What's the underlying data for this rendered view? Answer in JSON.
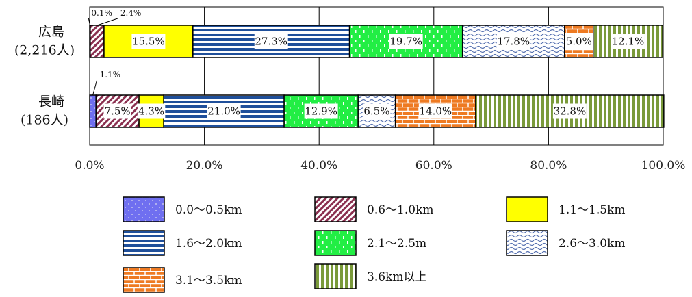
{
  "chart_data": {
    "type": "bar",
    "orientation": "horizontal",
    "stacked": true,
    "categories": [
      {
        "name": "広島",
        "count": "(2,216人)"
      },
      {
        "name": "長崎",
        "count": "(186人)"
      }
    ],
    "series": [
      {
        "name": "0.0～0.5km",
        "values": [
          0.1,
          1.1
        ],
        "labels": [
          "0.1%",
          "1.1%"
        ],
        "color": "#6f6ff0"
      },
      {
        "name": "0.6～1.0km",
        "values": [
          2.4,
          7.5
        ],
        "labels": [
          "2.4%",
          "7.5%"
        ],
        "color": "#8b3050"
      },
      {
        "name": "1.1～1.5km",
        "values": [
          15.5,
          4.3
        ],
        "labels": [
          "15.5%",
          "4.3%"
        ],
        "color": "#ffff00"
      },
      {
        "name": "1.6～2.0km",
        "values": [
          27.3,
          21.0
        ],
        "labels": [
          "27.3%",
          "21.0%"
        ],
        "color": "#1f4f9a"
      },
      {
        "name": "2.1～2.5m",
        "values": [
          19.7,
          12.9
        ],
        "labels": [
          "19.7%",
          "12.9%"
        ],
        "color": "#22ee44"
      },
      {
        "name": "2.6～3.0km",
        "values": [
          17.8,
          6.5
        ],
        "labels": [
          "17.8%",
          "6.5%"
        ],
        "color": "#5570b0"
      },
      {
        "name": "3.1～3.5km",
        "values": [
          5.0,
          14.0
        ],
        "labels": [
          "5.0%",
          "14.0%"
        ],
        "color": "#ee7a22"
      },
      {
        "name": "3.6km以上",
        "values": [
          12.1,
          32.8
        ],
        "labels": [
          "12.1%",
          "32.8%"
        ],
        "color": "#7a9a3a"
      }
    ],
    "xlim": [
      0,
      100
    ],
    "ticks": [
      "0.0%",
      "20.0%",
      "40.0%",
      "60.0%",
      "80.0%",
      "100.0%"
    ],
    "grid": true,
    "legend_position": "bottom"
  }
}
